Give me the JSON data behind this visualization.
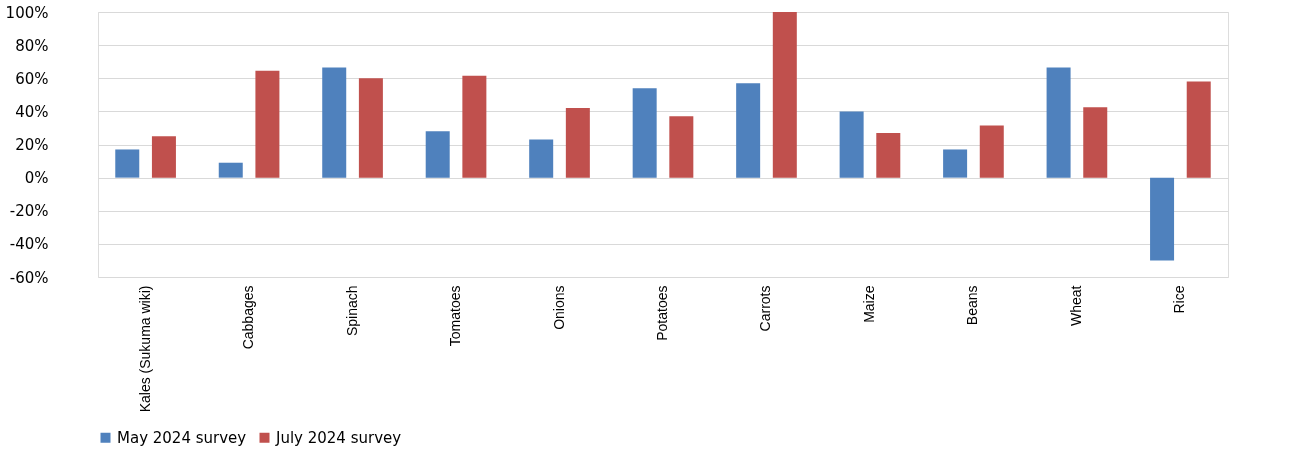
{
  "chart_data": {
    "type": "bar",
    "categories": [
      "Kales (Sukuma wiki)",
      "Cabbages",
      "Spinach",
      "Tomatoes",
      "Onions",
      "Potatoes",
      "Carrots",
      "Maize",
      "Beans",
      "Wheat",
      "Rice"
    ],
    "series": [
      {
        "name": "May 2024 survey",
        "color": "#4f81bd",
        "values": [
          17,
          9,
          66.5,
          28,
          23,
          54,
          57,
          40,
          17,
          66.5,
          -50
        ]
      },
      {
        "name": "July 2024 survey",
        "color": "#c0504d",
        "values": [
          25,
          64.5,
          60,
          61.5,
          42,
          37,
          100,
          27,
          31.5,
          42.5,
          58
        ]
      }
    ],
    "ylim": [
      -60,
      100
    ],
    "yticks": [
      {
        "value": -60,
        "label": "-60%"
      },
      {
        "value": -40,
        "label": "-40%"
      },
      {
        "value": -20,
        "label": "-20%"
      },
      {
        "value": 0,
        "label": "0%"
      },
      {
        "value": 20,
        "label": "20%"
      },
      {
        "value": 40,
        "label": "40%"
      },
      {
        "value": 60,
        "label": "60%"
      },
      {
        "value": 80,
        "label": "80%"
      },
      {
        "value": 100,
        "label": "100%"
      }
    ],
    "grid": "y",
    "legend": "bottom"
  }
}
